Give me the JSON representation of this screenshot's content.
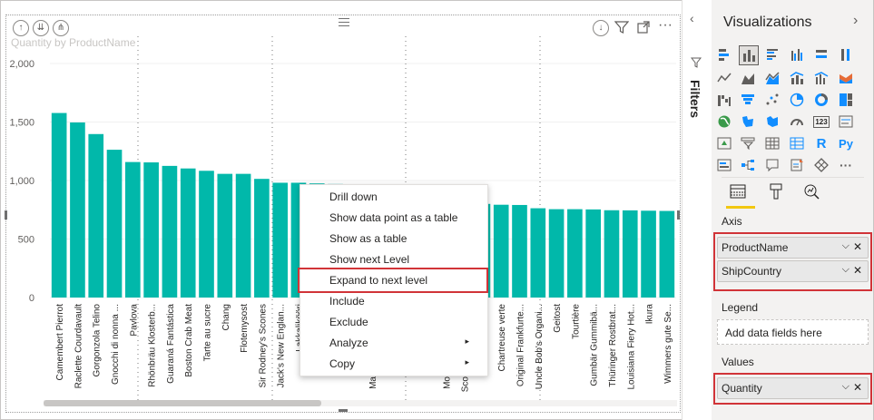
{
  "chart_data": {
    "type": "bar",
    "title": "Quantity by ProductName",
    "xlabel": "",
    "ylabel": "",
    "ylim": [
      0,
      2000
    ],
    "yticks": [
      "0",
      "500",
      "1,000",
      "1,500",
      "2,000"
    ],
    "ytick_values": [
      0,
      500,
      1000,
      1500,
      2000
    ],
    "color": "#01b8aa",
    "categories": [
      "Camembert Pierrot",
      "Raclette Courdavault",
      "Gorgonzola Telino",
      "Gnocchi di nonna ...",
      "Pavlova",
      "Rhönbräu Klosterb...",
      "Guaraná Fantástica",
      "Boston Crab Meat",
      "Tarte au sucre",
      "Chang",
      "Flotemysost",
      "Sir Rodney's Scones",
      "Jack's New Englan...",
      "Lakkalikööri",
      "",
      "",
      "",
      "",
      "",
      "",
      "",
      "",
      "",
      "",
      "Chartreuse verte",
      "Original Frankfurte...",
      "Uncle Bob's Organi...",
      "Geitost",
      "Tourtière",
      "Gumbär Gummibä...",
      "Thüringer Rostbrat...",
      "Louisiana Fiery Hot...",
      "Ikura",
      "Wimmers gute Se..."
    ],
    "values": [
      1577,
      1496,
      1397,
      1263,
      1158,
      1155,
      1125,
      1103,
      1083,
      1057,
      1057,
      1014,
      981,
      981,
      975,
      970,
      965,
      960,
      955,
      950,
      945,
      940,
      935,
      800,
      793,
      791,
      763,
      755,
      755,
      753,
      746,
      745,
      742,
      740
    ],
    "partial_labels": [
      "Ma",
      "Mo",
      "Sco"
    ]
  },
  "chart_header": {
    "drill_up_icon": "arrow-up-circle-icon",
    "drill_down_icon": "double-arrow-down-circle-icon",
    "expand_all_icon": "fork-arrow-circle-icon"
  },
  "context_menu": {
    "items": [
      {
        "label": "Drill down"
      },
      {
        "label": "Show data point as a table"
      },
      {
        "label": "Show as a table"
      },
      {
        "label": "Show next Level"
      },
      {
        "label": "Expand to next level"
      },
      {
        "label": "Include"
      },
      {
        "label": "Exclude"
      },
      {
        "label": "Analyze",
        "submenu": "▸"
      },
      {
        "label": "Copy",
        "submenu": "▸"
      }
    ],
    "highlighted": "Expand to next level"
  },
  "filters": {
    "label": "Filters"
  },
  "visualizations": {
    "title": "Visualizations",
    "field_tabs": [
      "fields-icon",
      "format-paintbrush-icon",
      "analytics-magnifier-icon"
    ],
    "sections": {
      "axis": {
        "label": "Axis",
        "fields": [
          "ProductName",
          "ShipCountry"
        ]
      },
      "legend": {
        "label": "Legend",
        "placeholder": "Add data fields here"
      },
      "values": {
        "label": "Values",
        "fields": [
          "Quantity"
        ]
      }
    },
    "glyphs": {
      "r": "R",
      "py": "Py",
      "num": "123",
      "more": "···"
    },
    "highlight_color": "#d13438",
    "accent_color": "#f2c811"
  }
}
